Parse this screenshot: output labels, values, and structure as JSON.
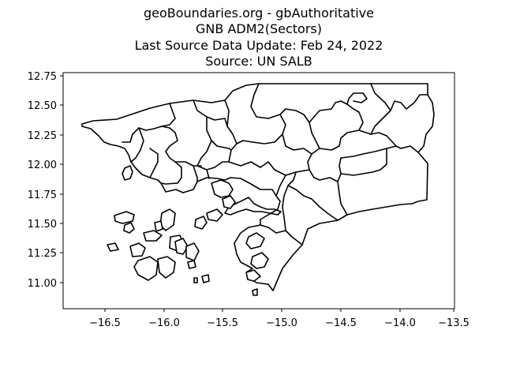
{
  "title": {
    "line1": "geoBoundaries.org - gbAuthoritative",
    "line2": "GNB ADM2(Sectors)",
    "line3": "Last Source Data Update: Feb 24, 2022",
    "line4": "Source: UN SALB"
  },
  "chart_data": {
    "type": "map",
    "xlim": [
      -16.85,
      -13.55
    ],
    "ylim": [
      10.8,
      12.8
    ],
    "x_ticks": [
      "−16.5",
      "−16.0",
      "−15.5",
      "−15.0",
      "−14.5",
      "−14.0",
      "−13.5"
    ],
    "y_ticks": [
      "12.75",
      "12.50",
      "12.25",
      "12.00",
      "11.75",
      "11.50",
      "11.25",
      "11.00"
    ],
    "grid": false,
    "line_color": "#000000"
  }
}
